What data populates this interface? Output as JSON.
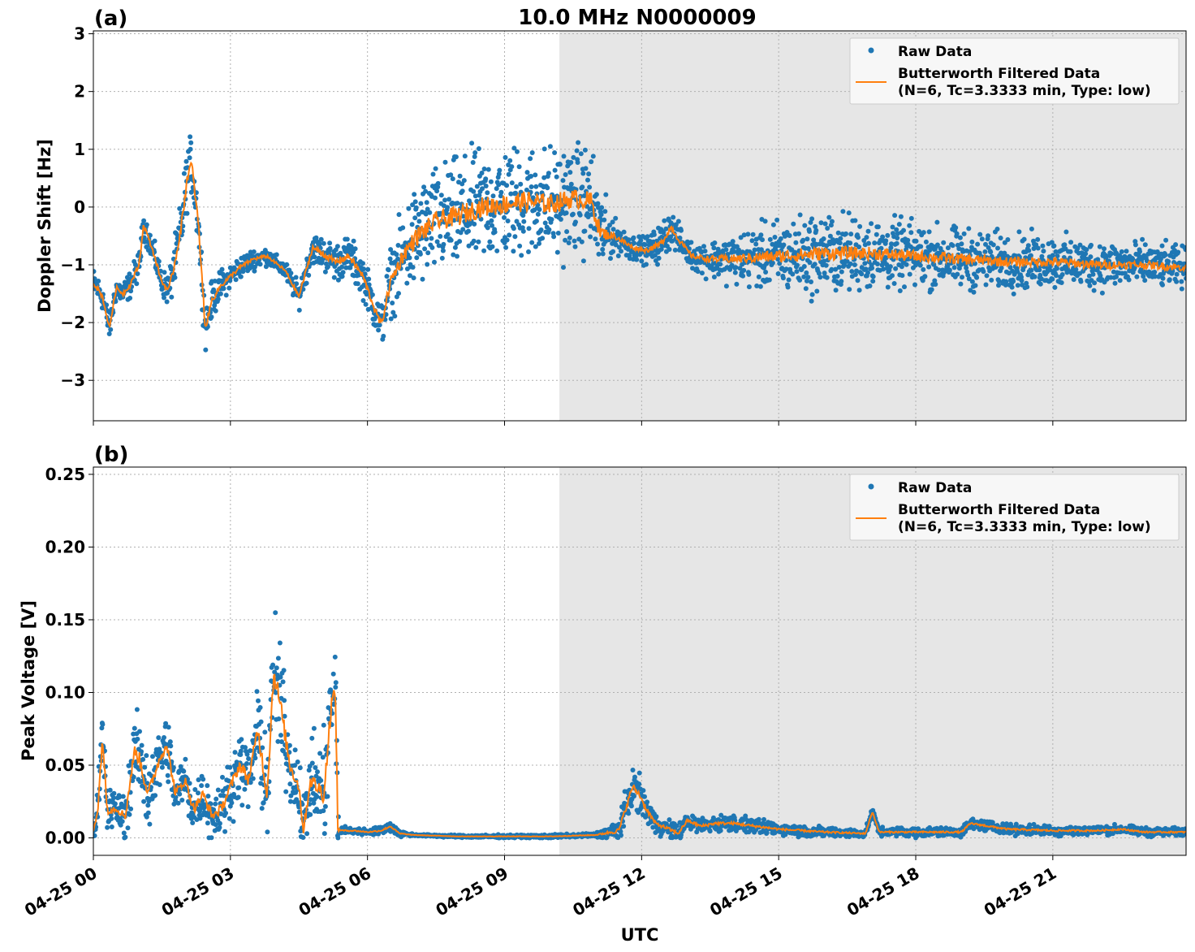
{
  "figure": {
    "title": "10.0 MHz N0000009",
    "xlabel": "UTC",
    "x_tick_labels": [
      "04-25 00",
      "04-25 03",
      "04-25 06",
      "04-25 09",
      "04-25 12",
      "04-25 15",
      "04-25 18",
      "04-25 21"
    ],
    "shaded_region": {
      "start": "10:12",
      "end": "23:55",
      "color": "#e6e6e6"
    },
    "colors": {
      "raw": "#1f77b4",
      "filtered": "#ff7f0e",
      "grid": "#b0b0b0"
    }
  },
  "chart_data": [
    {
      "type": "scatter",
      "panel_label": "(a)",
      "ylabel": "Doppler Shift [Hz]",
      "xlim": [
        "04-25 00:00",
        "04-25 23:55"
      ],
      "ylim": [
        -3.7,
        3.05
      ],
      "y_ticks": [
        3,
        2,
        1,
        0,
        -1,
        -2,
        -3
      ],
      "y_tick_labels": [
        "3",
        "2",
        "1",
        "0",
        "−1",
        "−2",
        "−3"
      ],
      "grid": true,
      "legend": {
        "placement": "top-right",
        "raw_label": "Raw Data",
        "filtered_label_line1": "Butterworth Filtered Data",
        "filtered_label_line2": "(N=6, Tc=3.3333 min, Type: low)"
      },
      "series": [
        {
          "name": "Butterworth Filtered Data",
          "style": "line",
          "x_hours": [
            0,
            0.2,
            0.35,
            0.5,
            0.65,
            0.8,
            1.0,
            1.1,
            1.3,
            1.5,
            1.65,
            1.8,
            1.95,
            2.05,
            2.15,
            2.3,
            2.45,
            2.6,
            2.8,
            3.0,
            3.2,
            3.5,
            3.8,
            4.2,
            4.5,
            4.8,
            5.0,
            5.3,
            5.6,
            5.9,
            6.15,
            6.3,
            6.5,
            6.8,
            7.1,
            7.5,
            8.0,
            8.5,
            9.0,
            9.5,
            10.0,
            10.5,
            10.9,
            11.1,
            11.4,
            11.8,
            12.1,
            12.4,
            12.65,
            12.8,
            13.1,
            13.5,
            14.0,
            15.0,
            16.0,
            17.0,
            18.0,
            19.0,
            20.0,
            21.0,
            22.0,
            23.0,
            23.9
          ],
          "y_values": [
            -1.3,
            -1.55,
            -2.1,
            -1.4,
            -1.5,
            -1.35,
            -1.0,
            -0.3,
            -0.75,
            -1.3,
            -1.45,
            -0.9,
            -0.2,
            0.5,
            0.75,
            -0.3,
            -2.1,
            -1.6,
            -1.35,
            -1.2,
            -1.05,
            -0.9,
            -0.85,
            -1.1,
            -1.55,
            -0.7,
            -0.8,
            -0.95,
            -0.85,
            -1.2,
            -1.75,
            -2.05,
            -1.3,
            -0.8,
            -0.5,
            -0.25,
            -0.15,
            0.0,
            0.05,
            0.1,
            0.05,
            0.15,
            0.1,
            -0.45,
            -0.5,
            -0.7,
            -0.75,
            -0.65,
            -0.35,
            -0.55,
            -0.85,
            -0.9,
            -0.9,
            -0.85,
            -0.8,
            -0.8,
            -0.85,
            -0.9,
            -0.95,
            -0.95,
            -1.0,
            -1.0,
            -1.05
          ]
        },
        {
          "name": "Raw Data",
          "style": "markers",
          "spread_profile": {
            "x_hours": [
              0,
              0.5,
              1.0,
              1.5,
              2.0,
              2.5,
              3.0,
              4.0,
              5.0,
              5.5,
              6.2,
              6.6,
              7.0,
              8.0,
              9.0,
              10.0,
              11.0,
              11.4,
              12.0,
              12.5,
              13.0,
              14.0,
              15.0,
              16.0,
              18.0,
              20.0,
              22.0,
              23.9
            ],
            "half_range_hz": [
              0.35,
              0.3,
              0.35,
              0.3,
              0.8,
              0.5,
              0.3,
              0.2,
              0.4,
              0.5,
              0.5,
              0.9,
              1.3,
              1.4,
              1.4,
              1.4,
              1.3,
              0.4,
              0.3,
              0.5,
              0.3,
              0.6,
              0.9,
              1.0,
              0.8,
              0.7,
              0.6,
              0.5
            ]
          }
        }
      ]
    },
    {
      "type": "scatter",
      "panel_label": "(b)",
      "ylabel": "Peak Voltage [V]",
      "xlim": [
        "04-25 00:00",
        "04-25 23:55"
      ],
      "ylim": [
        -0.012,
        0.255
      ],
      "y_ticks": [
        0.25,
        0.2,
        0.15,
        0.1,
        0.05,
        0.0
      ],
      "y_tick_labels": [
        "0.25",
        "0.20",
        "0.15",
        "0.10",
        "0.05",
        "0.00"
      ],
      "grid": true,
      "legend": {
        "placement": "top-right",
        "raw_label": "Raw Data",
        "filtered_label_line1": "Butterworth Filtered Data",
        "filtered_label_line2": "(N=6, Tc=3.3333 min, Type: low)"
      },
      "series": [
        {
          "name": "Butterworth Filtered Data",
          "style": "line",
          "x_hours": [
            0,
            0.1,
            0.2,
            0.3,
            0.5,
            0.7,
            0.9,
            1.0,
            1.2,
            1.4,
            1.6,
            1.8,
            2.0,
            2.2,
            2.4,
            2.6,
            2.8,
            3.0,
            3.2,
            3.4,
            3.6,
            3.8,
            3.95,
            4.1,
            4.3,
            4.5,
            4.6,
            4.75,
            4.9,
            5.05,
            5.2,
            5.3,
            5.35,
            5.45,
            5.7,
            6.0,
            6.3,
            6.5,
            6.7,
            7.0,
            8.0,
            9.0,
            10.0,
            11.0,
            11.5,
            11.8,
            11.95,
            12.1,
            12.3,
            12.6,
            12.8,
            13.0,
            13.3,
            13.6,
            14.0,
            14.5,
            15.0,
            16.0,
            16.9,
            17.05,
            17.2,
            18.0,
            19.0,
            19.2,
            20.0,
            21.0,
            22.0,
            22.5,
            23.0,
            23.9
          ],
          "y_values": [
            0.005,
            0.02,
            0.07,
            0.02,
            0.02,
            0.015,
            0.06,
            0.055,
            0.03,
            0.05,
            0.065,
            0.03,
            0.04,
            0.02,
            0.03,
            0.015,
            0.02,
            0.035,
            0.05,
            0.04,
            0.075,
            0.03,
            0.115,
            0.09,
            0.05,
            0.035,
            0.005,
            0.04,
            0.035,
            0.03,
            0.09,
            0.1,
            0.006,
            0.005,
            0.005,
            0.004,
            0.005,
            0.008,
            0.003,
            0.002,
            0.001,
            0.001,
            0.001,
            0.002,
            0.005,
            0.035,
            0.03,
            0.02,
            0.01,
            0.006,
            0.003,
            0.012,
            0.008,
            0.01,
            0.01,
            0.008,
            0.006,
            0.004,
            0.003,
            0.018,
            0.004,
            0.004,
            0.004,
            0.01,
            0.006,
            0.005,
            0.005,
            0.006,
            0.004,
            0.004
          ]
        },
        {
          "name": "Raw Data",
          "style": "markers",
          "spread_profile": {
            "x_hours": [
              0,
              0.2,
              0.5,
              1.0,
              1.5,
              2.0,
              2.5,
              3.0,
              3.5,
              4.0,
              4.5,
              5.0,
              5.3,
              5.4,
              6.0,
              6.5,
              7.0,
              11.0,
              11.8,
              12.3,
              13.0,
              14.0,
              15.0,
              17.0,
              19.0,
              21.0,
              23.9
            ],
            "half_range_v": [
              0.005,
              0.04,
              0.015,
              0.04,
              0.03,
              0.03,
              0.025,
              0.03,
              0.035,
              0.06,
              0.03,
              0.05,
              0.06,
              0.004,
              0.003,
              0.005,
              0.001,
              0.002,
              0.02,
              0.01,
              0.008,
              0.008,
              0.006,
              0.004,
              0.005,
              0.005,
              0.004
            ]
          }
        }
      ]
    }
  ]
}
